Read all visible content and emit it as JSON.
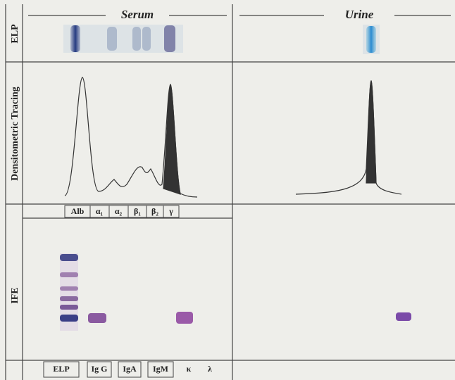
{
  "header": {
    "left": "Serum",
    "right": "Urine"
  },
  "rows": {
    "elp": "ELP",
    "tracing": "Densitometric Tracing",
    "ife": "IFE"
  },
  "fractions": [
    "Alb",
    "α₁",
    "α₂",
    "β₁",
    "β₂",
    "γ"
  ],
  "lanes": [
    "ELP",
    "Ig G",
    "IgA",
    "IgM",
    "κ",
    "λ"
  ]
}
